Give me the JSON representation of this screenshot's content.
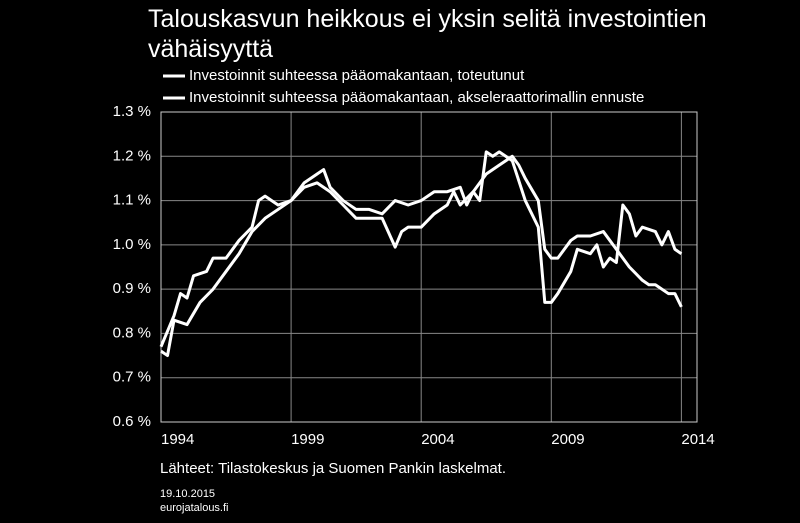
{
  "chart_data": {
    "type": "line",
    "title": "Talouskasvun heikkous ei yksin selitä investointien vähäisyyttä",
    "source": "Lähteet: Tilastokeskus ja Suomen Pankin laskelmat.",
    "date": "19.10.2015",
    "site": "eurojatalous.fi",
    "grid": true,
    "xlim": [
      1994,
      2014.6
    ],
    "xticks": [
      1994,
      1999,
      2004,
      2009,
      2014
    ],
    "ylim": [
      0.6,
      1.3
    ],
    "yticks": [
      {
        "value": 0.6,
        "label": "0.6 %"
      },
      {
        "value": 0.7,
        "label": "0.7 %"
      },
      {
        "value": 0.8,
        "label": "0.8 %"
      },
      {
        "value": 0.9,
        "label": "0.9 %"
      },
      {
        "value": 1.0,
        "label": "1.0 %"
      },
      {
        "value": 1.1,
        "label": "1.1 %"
      },
      {
        "value": 1.2,
        "label": "1.2 %"
      },
      {
        "value": 1.3,
        "label": "1.3 %"
      }
    ],
    "series": [
      {
        "name": "Investoinnit suhteessa pääomakantaan, toteutunut",
        "color": "#ffffff",
        "x": [
          1994,
          1994.25,
          1994.5,
          1995,
          1995.5,
          1996,
          1996.5,
          1997,
          1997.5,
          1998,
          1998.5,
          1999,
          1999.5,
          2000,
          2000.5,
          2001,
          2001.5,
          2002,
          2002.5,
          2003,
          2003.25,
          2003.5,
          2004,
          2004.5,
          2005,
          2005.25,
          2005.5,
          2006,
          2006.25,
          2006.5,
          2006.75,
          2007,
          2007.5,
          2008,
          2008.5,
          2008.75,
          2009,
          2009.25,
          2009.75,
          2010,
          2010.5,
          2010.75,
          2011,
          2011.25,
          2011.5,
          2011.75,
          2012,
          2012.25,
          2012.5,
          2013,
          2013.25,
          2013.5,
          2013.75,
          2014
        ],
        "values": [
          0.76,
          0.75,
          0.83,
          0.82,
          0.87,
          0.9,
          0.94,
          0.98,
          1.03,
          1.06,
          1.08,
          1.1,
          1.13,
          1.14,
          1.12,
          1.09,
          1.06,
          1.06,
          1.06,
          0.995,
          1.03,
          1.04,
          1.04,
          1.07,
          1.09,
          1.12,
          1.09,
          1.12,
          1.1,
          1.21,
          1.2,
          1.21,
          1.19,
          1.1,
          1.04,
          0.87,
          0.87,
          0.89,
          0.94,
          0.99,
          0.98,
          1.0,
          0.95,
          0.97,
          0.96,
          1.09,
          1.07,
          1.02,
          1.04,
          1.03,
          1.0,
          1.03,
          0.99,
          0.98
        ]
      },
      {
        "name": "Investoinnit suhteessa pääomakantaan, akseleraattorimallin ennuste",
        "color": "#ffffff",
        "x": [
          1994,
          1994.5,
          1994.75,
          1995,
          1995.25,
          1995.75,
          1996,
          1996.5,
          1997,
          1997.5,
          1997.75,
          1998,
          1998.5,
          1999,
          1999.5,
          2000,
          2000.25,
          2000.5,
          2001,
          2001.5,
          2002,
          2002.5,
          2003,
          2003.5,
          2004,
          2004.5,
          2005,
          2005.5,
          2005.75,
          2006,
          2006.5,
          2007,
          2007.5,
          2007.75,
          2008,
          2008.5,
          2008.75,
          2009,
          2009.25,
          2009.75,
          2010,
          2010.5,
          2011,
          2011.25,
          2011.5,
          2012,
          2012.5,
          2012.75,
          2013,
          2013.5,
          2013.75,
          2014
        ],
        "values": [
          0.77,
          0.84,
          0.89,
          0.88,
          0.93,
          0.94,
          0.97,
          0.97,
          1.01,
          1.04,
          1.1,
          1.11,
          1.09,
          1.1,
          1.14,
          1.16,
          1.17,
          1.13,
          1.1,
          1.08,
          1.08,
          1.07,
          1.1,
          1.09,
          1.1,
          1.12,
          1.12,
          1.13,
          1.09,
          1.12,
          1.16,
          1.18,
          1.2,
          1.18,
          1.15,
          1.1,
          0.99,
          0.97,
          0.97,
          1.01,
          1.02,
          1.02,
          1.03,
          1.01,
          0.99,
          0.95,
          0.92,
          0.91,
          0.91,
          0.89,
          0.89,
          0.86
        ]
      }
    ]
  }
}
